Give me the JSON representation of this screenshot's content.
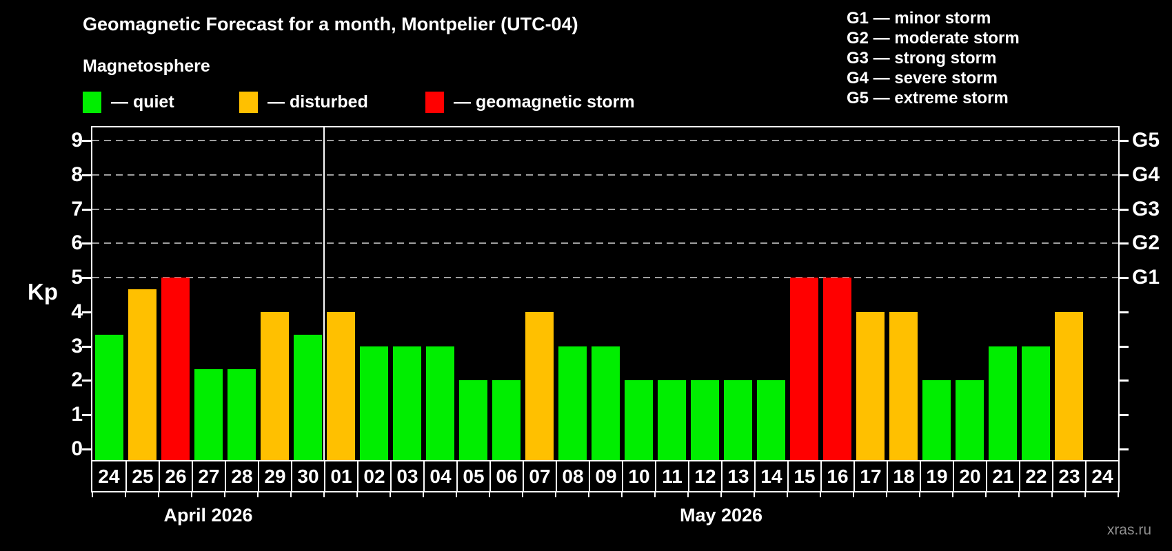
{
  "title": "Geomagnetic Forecast for a month, Montpelier (UTC-04)",
  "subtitle": "Magnetosphere",
  "legend": {
    "items": [
      {
        "key": "quiet",
        "label": "— quiet"
      },
      {
        "key": "disturbed",
        "label": "— disturbed"
      },
      {
        "key": "storm",
        "label": "— geomagnetic storm"
      }
    ]
  },
  "storm_scale_legend": [
    "G1 — minor storm",
    "G2 — moderate storm",
    "G3 — strong storm",
    "G4 — severe storm",
    "G5 — extreme storm"
  ],
  "watermark": "xras.ru",
  "colors": {
    "quiet": "#00ee00",
    "disturbed": "#ffc000",
    "storm": "#ff0000",
    "grid": "#9f9f9f",
    "frame": "#ffffff",
    "text": "#ffffff",
    "watermark": "#8f8f8f"
  },
  "chart_data": {
    "type": "bar",
    "title": "Geomagnetic Forecast for a month, Montpelier (UTC-04)",
    "ylabel": "Kp",
    "xlabel": "",
    "ylim": [
      -0.32,
      9.38
    ],
    "yticks": [
      0,
      1,
      2,
      3,
      4,
      5,
      6,
      7,
      8,
      9
    ],
    "gridline_values": [
      5,
      6,
      7,
      8,
      9
    ],
    "grid": "horizontal dashed at storm levels only",
    "legend_position": "top",
    "right_axis": [
      {
        "label": "G1",
        "value": 5
      },
      {
        "label": "G2",
        "value": 6
      },
      {
        "label": "G3",
        "value": 7
      },
      {
        "label": "G4",
        "value": 8
      },
      {
        "label": "G5",
        "value": 9
      }
    ],
    "categories": [
      "24",
      "25",
      "26",
      "27",
      "28",
      "29",
      "30",
      "01",
      "02",
      "03",
      "04",
      "05",
      "06",
      "07",
      "08",
      "09",
      "10",
      "11",
      "12",
      "13",
      "14",
      "15",
      "16",
      "17",
      "18",
      "19",
      "20",
      "21",
      "22",
      "23",
      "24"
    ],
    "values": [
      3.33,
      4.67,
      5,
      2.33,
      2.33,
      4,
      3.33,
      4,
      3,
      3,
      3,
      2,
      2,
      4,
      3,
      3,
      2,
      2,
      2,
      2,
      2,
      5,
      5,
      4,
      4,
      2,
      2,
      3,
      3,
      4,
      null
    ],
    "bar_status": [
      "quiet",
      "disturbed",
      "storm",
      "quiet",
      "quiet",
      "disturbed",
      "quiet",
      "disturbed",
      "quiet",
      "quiet",
      "quiet",
      "quiet",
      "quiet",
      "disturbed",
      "quiet",
      "quiet",
      "quiet",
      "quiet",
      "quiet",
      "quiet",
      "quiet",
      "storm",
      "storm",
      "disturbed",
      "disturbed",
      "quiet",
      "quiet",
      "quiet",
      "quiet",
      "disturbed",
      null
    ],
    "separator_after_index": 6,
    "months": [
      {
        "label": "April 2026",
        "start_index": 0,
        "end_index": 6
      },
      {
        "label": "May 2026",
        "start_index": 7,
        "end_index": 30
      }
    ]
  }
}
